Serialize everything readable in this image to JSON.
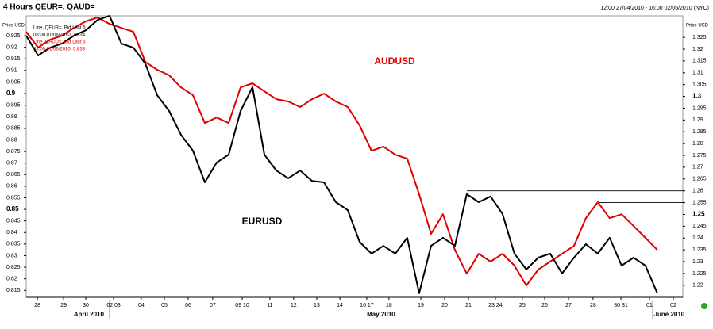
{
  "chart_data": {
    "type": "line",
    "title": "4 Hours QEUR=, QAUD=",
    "subtitle": "12:00 27/04/2010 - 16:00 02/06/2010 (NYC)",
    "y_label": "Price USD",
    "y2_label": "Price USD",
    "legend_text": [
      "Line, QEUR=, Bid Last 6",
      "08:00 01/06/2010, 1.234",
      "Line, QAUD=, Bid Last 6",
      "08:00 01/06/2010, 0.833"
    ],
    "x": [
      0,
      0.5,
      1,
      1.5,
      2,
      2.5,
      3,
      3.5,
      4,
      4.5,
      5,
      5.5,
      6,
      6.5,
      7,
      7.5,
      8,
      8.5,
      9,
      9.5,
      10,
      10.5,
      11,
      11.5,
      12,
      12.5,
      13,
      13.5,
      14,
      14.5,
      15,
      15.5,
      16,
      16.5,
      17,
      17.5,
      18,
      18.5,
      19,
      19.5,
      20,
      20.5,
      21,
      21.5,
      22,
      22.5,
      23,
      23.5,
      24,
      24.5,
      25,
      25.5,
      26,
      26.5
    ],
    "series": [
      {
        "name": "AUDUSD",
        "color": "#e00000",
        "axis": "y",
        "values": [
          0.9267,
          0.9199,
          0.9233,
          0.925,
          0.9284,
          0.9312,
          0.9329,
          0.9301,
          0.9284,
          0.9267,
          0.9137,
          0.9103,
          0.9079,
          0.9027,
          0.8993,
          0.8873,
          0.8897,
          0.8873,
          0.9027,
          0.9045,
          0.901,
          0.8976,
          0.8966,
          0.8942,
          0.8976,
          0.9,
          0.8966,
          0.8942,
          0.8863,
          0.8753,
          0.8771,
          0.8736,
          0.8719,
          0.8565,
          0.8394,
          0.8479,
          0.8325,
          0.8222,
          0.8308,
          0.8274,
          0.8308,
          0.8257,
          0.8171,
          0.824,
          0.8274,
          0.8308,
          0.8342,
          0.8462,
          0.8531,
          0.8462,
          0.8479,
          0.8428,
          0.8377,
          0.8325
        ]
      },
      {
        "name": "EURUSD",
        "color": "#000000",
        "axis": "y2",
        "values": [
          1.3257,
          1.3173,
          1.3206,
          1.3223,
          1.3257,
          1.328,
          1.3324,
          1.3341,
          1.3223,
          1.3206,
          1.3139,
          1.3005,
          1.2938,
          1.2837,
          1.277,
          1.2636,
          1.272,
          1.2753,
          1.2938,
          1.3039,
          1.2753,
          1.2686,
          1.2653,
          1.2686,
          1.2642,
          1.2636,
          1.2552,
          1.2518,
          1.2384,
          1.2334,
          1.2367,
          1.2334,
          1.2401,
          1.2166,
          1.2367,
          1.2401,
          1.2367,
          1.2586,
          1.2552,
          1.2576,
          1.2502,
          1.2334,
          1.2267,
          1.2317,
          1.2334,
          1.225,
          1.2317,
          1.2374,
          1.2334,
          1.2401,
          1.2283,
          1.2317,
          1.2283,
          1.2166
        ]
      }
    ],
    "reference_lines": [
      {
        "value": 1.26,
        "start": 18.5,
        "axis": "y2"
      },
      {
        "value": 1.255,
        "start": 24,
        "axis": "y2"
      }
    ],
    "xlim": [
      0,
      27.57
    ],
    "xticks": [
      {
        "value": 0.47,
        "label": "28"
      },
      {
        "value": 1.57,
        "label": "29"
      },
      {
        "value": 2.5,
        "label": "30"
      },
      {
        "value": 3.67,
        "label": "02 03"
      },
      {
        "value": 4.83,
        "label": "04"
      },
      {
        "value": 5.8,
        "label": "05"
      },
      {
        "value": 6.8,
        "label": "06"
      },
      {
        "value": 7.83,
        "label": "07"
      },
      {
        "value": 9.07,
        "label": "09 10"
      },
      {
        "value": 10.23,
        "label": "11"
      },
      {
        "value": 11.23,
        "label": "12"
      },
      {
        "value": 12.2,
        "label": "13"
      },
      {
        "value": 13.17,
        "label": "14"
      },
      {
        "value": 14.3,
        "label": "16 17"
      },
      {
        "value": 15.23,
        "label": "18"
      },
      {
        "value": 16.57,
        "label": "19"
      },
      {
        "value": 17.57,
        "label": "20"
      },
      {
        "value": 18.57,
        "label": "21"
      },
      {
        "value": 19.7,
        "label": "23 24"
      },
      {
        "value": 20.83,
        "label": "25"
      },
      {
        "value": 21.77,
        "label": "26"
      },
      {
        "value": 22.77,
        "label": "27"
      },
      {
        "value": 23.8,
        "label": "28"
      },
      {
        "value": 24.97,
        "label": "30 31"
      },
      {
        "value": 26.17,
        "label": "01"
      },
      {
        "value": 27.17,
        "label": "02"
      }
    ],
    "months": [
      {
        "value": 2.63,
        "label": "April 2010"
      },
      {
        "value": 14.9,
        "label": "May 2010"
      },
      {
        "value": 27.0,
        "label": "June 2010"
      }
    ],
    "ylim": [
      0.812,
      0.9336
    ],
    "yticks": [
      0.815,
      0.82,
      0.825,
      0.83,
      0.835,
      0.84,
      0.845,
      0.85,
      0.855,
      0.86,
      0.865,
      0.87,
      0.875,
      0.88,
      0.885,
      0.89,
      0.895,
      0.9,
      0.905,
      0.91,
      0.915,
      0.92,
      0.925
    ],
    "y2lim": [
      1.2149,
      1.3341
    ],
    "y2ticks": [
      1.22,
      1.225,
      1.23,
      1.235,
      1.24,
      1.245,
      1.25,
      1.255,
      1.26,
      1.265,
      1.27,
      1.275,
      1.28,
      1.285,
      1.29,
      1.295,
      1.3,
      1.305,
      1.31,
      1.315,
      1.32,
      1.325
    ],
    "grid": false
  }
}
